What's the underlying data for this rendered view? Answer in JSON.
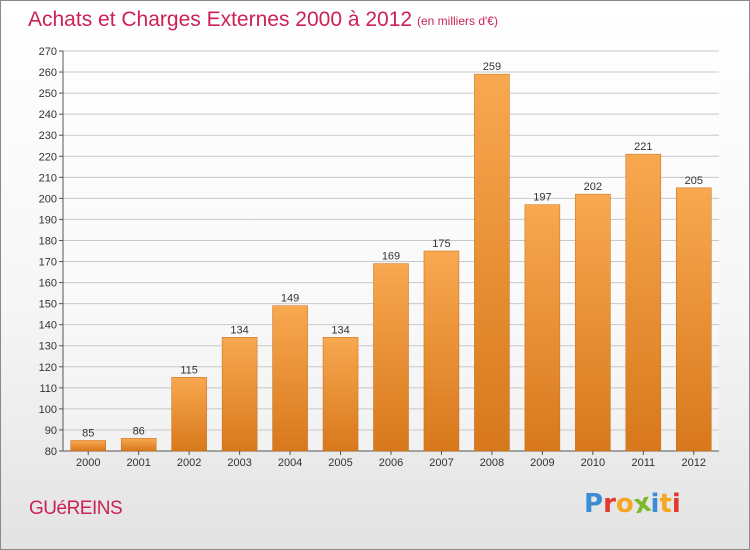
{
  "header": {
    "title": "Achats et Charges Externes 2000 à 2012",
    "subtitle": "(en milliers d'€)"
  },
  "footer": {
    "place": "GUéREINS",
    "logo_text": "Proxiti",
    "logo_colors": [
      "#3b8ed6",
      "#e23a2e",
      "#f5a623",
      "#7cb82f",
      "#3b8ed6",
      "#f5a623",
      "#e23a2e"
    ]
  },
  "colors": {
    "accent": "#cc2255",
    "bar_top": "#f8a850",
    "bar_bottom": "#d8781c",
    "grid": "#c8c8c8"
  },
  "chart_data": {
    "type": "bar",
    "title": "Achats et Charges Externes 2000 à 2012",
    "subtitle": "(en milliers d'€)",
    "categories": [
      "2000",
      "2001",
      "2002",
      "2003",
      "2004",
      "2005",
      "2006",
      "2007",
      "2008",
      "2009",
      "2010",
      "2011",
      "2012"
    ],
    "values": [
      85,
      86,
      115,
      134,
      149,
      134,
      169,
      175,
      259,
      197,
      202,
      221,
      205
    ],
    "ylim": [
      80,
      270
    ],
    "ytick_step": 10,
    "grid": true,
    "xlabel": "",
    "ylabel": ""
  }
}
